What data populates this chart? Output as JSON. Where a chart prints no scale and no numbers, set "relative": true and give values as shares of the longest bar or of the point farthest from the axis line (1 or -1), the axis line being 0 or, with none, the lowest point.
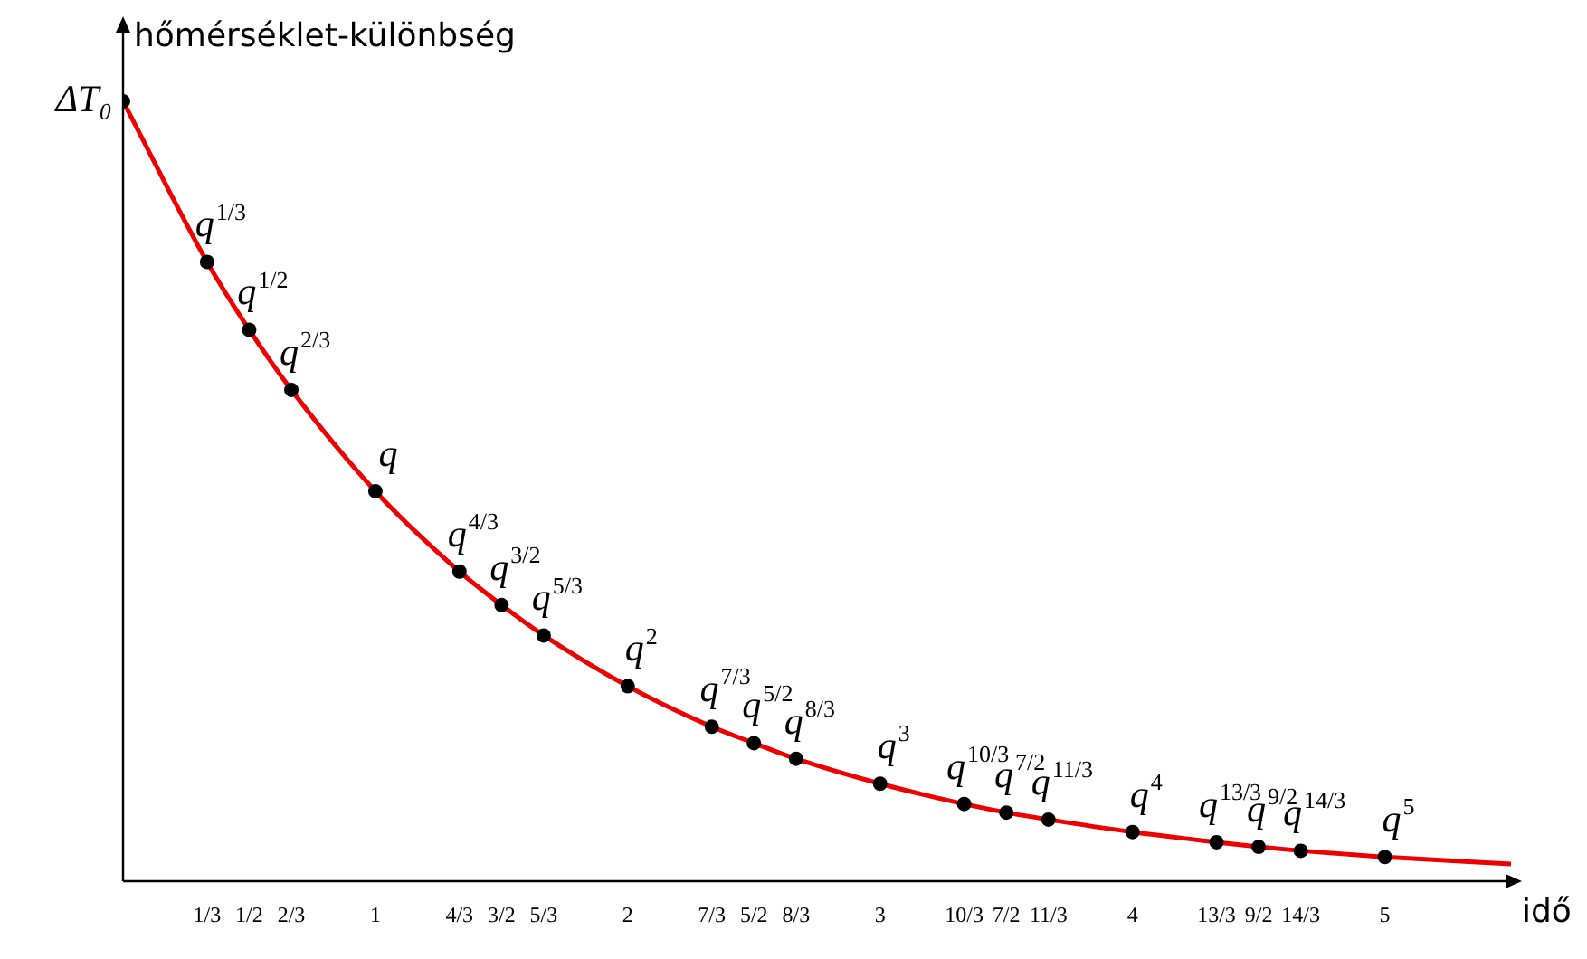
{
  "chart_data": {
    "type": "line",
    "xlabel": "idő",
    "ylabel": "hőmérséklet-különbség",
    "relative": true,
    "xlim": [
      0,
      5.5
    ],
    "xticks": [
      {
        "value": 0.333,
        "label": "1/3"
      },
      {
        "value": 0.5,
        "label": "1/2"
      },
      {
        "value": 0.667,
        "label": "2/3"
      },
      1,
      {
        "value": 1.333,
        "label": "4/3"
      },
      {
        "value": 1.5,
        "label": "3/2"
      },
      {
        "value": 1.667,
        "label": "5/3"
      },
      2,
      {
        "value": 2.333,
        "label": "7/3"
      },
      {
        "value": 2.5,
        "label": "5/2"
      },
      {
        "value": 2.667,
        "label": "8/3"
      },
      3,
      {
        "value": 3.333,
        "label": "10/3"
      },
      {
        "value": 3.5,
        "label": "7/2"
      },
      {
        "value": 3.667,
        "label": "11/3"
      },
      4,
      {
        "value": 4.333,
        "label": "13/3"
      },
      {
        "value": 4.5,
        "label": "9/2"
      },
      {
        "value": 4.667,
        "label": "14/3"
      },
      5
    ],
    "grid": false,
    "legend": false,
    "annotations": [
      {
        "text": "ΔT₀",
        "x": 0,
        "y": 1
      },
      {
        "text": "q$^{1/3}$",
        "x": 0.333,
        "y": 0.794
      },
      {
        "text": "q$^{1/2}$",
        "x": 0.5,
        "y": 0.707
      },
      {
        "text": "q$^{2/3}$",
        "x": 0.667,
        "y": 0.63
      },
      {
        "text": "q",
        "x": 1,
        "y": 0.5
      },
      {
        "text": "q$^{4/3}$",
        "x": 1.333,
        "y": 0.397
      },
      {
        "text": "q$^{3/2}$",
        "x": 1.5,
        "y": 0.354
      },
      {
        "text": "q$^{5/3}$",
        "x": 1.667,
        "y": 0.315
      },
      {
        "text": "q$^{2}$",
        "x": 2,
        "y": 0.25
      },
      {
        "text": "q$^{7/3}$",
        "x": 2.333,
        "y": 0.198
      },
      {
        "text": "q$^{5/2}$",
        "x": 2.5,
        "y": 0.177
      },
      {
        "text": "q$^{8/3}$",
        "x": 2.667,
        "y": 0.157
      },
      {
        "text": "q$^{3}$",
        "x": 3,
        "y": 0.125
      },
      {
        "text": "q$^{10/3}$",
        "x": 3.333,
        "y": 0.099
      },
      {
        "text": "q$^{7/2}$",
        "x": 3.5,
        "y": 0.088
      },
      {
        "text": "q$^{11/3}$",
        "x": 3.667,
        "y": 0.079
      },
      {
        "text": "q$^{4}$",
        "x": 4,
        "y": 0.063
      },
      {
        "text": "q$^{13/3}$",
        "x": 4.333,
        "y": 0.05
      },
      {
        "text": "q$^{9/2}$",
        "x": 4.5,
        "y": 0.044
      },
      {
        "text": "q$^{14/3}$",
        "x": 4.667,
        "y": 0.039
      },
      {
        "text": "q$^{5}$",
        "x": 5,
        "y": 0.031
      }
    ],
    "series": [
      {
        "type": "line",
        "color": "#ee0000",
        "marker": "none",
        "x": [
          0,
          0.333,
          0.5,
          0.667,
          1,
          1.333,
          1.5,
          1.667,
          2,
          2.333,
          2.5,
          2.667,
          3,
          3.333,
          3.5,
          3.667,
          4,
          4.333,
          4.5,
          4.667,
          5,
          5.5
        ],
        "values": [
          1,
          0.794,
          0.707,
          0.63,
          0.5,
          0.397,
          0.354,
          0.315,
          0.25,
          0.198,
          0.177,
          0.157,
          0.125,
          0.099,
          0.088,
          0.079,
          0.063,
          0.05,
          0.044,
          0.039,
          0.031,
          0.022
        ]
      },
      {
        "type": "scatter",
        "color": "#000000",
        "marker": "circle",
        "x": [
          0,
          0.333,
          0.5,
          0.667,
          1,
          1.333,
          1.5,
          1.667,
          2,
          2.333,
          2.5,
          2.667,
          3,
          3.333,
          3.5,
          3.667,
          4,
          4.333,
          4.5,
          4.667,
          5
        ],
        "values": [
          1,
          0.794,
          0.707,
          0.63,
          0.5,
          0.397,
          0.354,
          0.315,
          0.25,
          0.198,
          0.177,
          0.157,
          0.125,
          0.099,
          0.088,
          0.079,
          0.063,
          0.05,
          0.044,
          0.039,
          0.031
        ]
      }
    ]
  }
}
